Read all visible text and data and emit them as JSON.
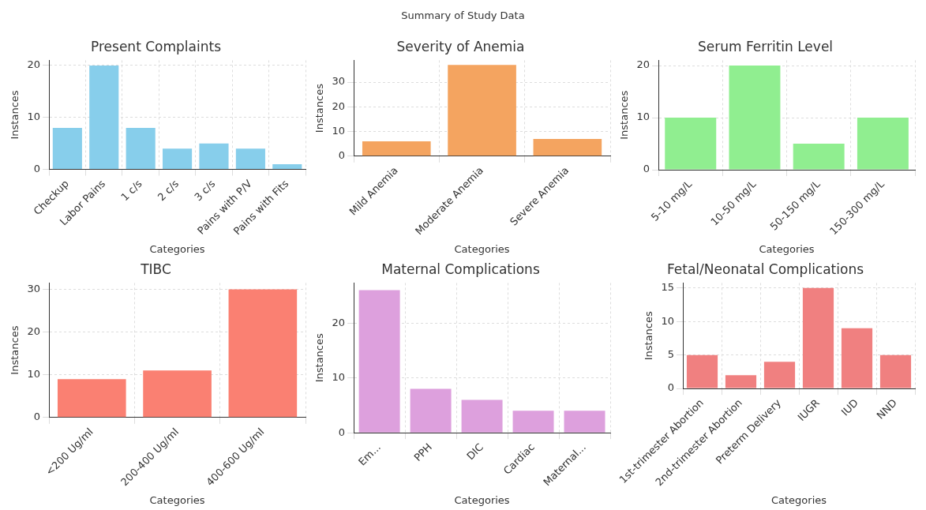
{
  "chart_data": [
    {
      "type": "other",
      "title": "Summary of Study Data"
    },
    {
      "type": "bar",
      "title": "Present Complaints",
      "xlabel": "Categories",
      "ylabel": "Instances",
      "categories": [
        "Checkup",
        "Labor Pains",
        "1 c/s",
        "2 c/s",
        "3 c/s",
        "Pains with P/V",
        "Pains with Fits"
      ],
      "values": [
        8,
        20,
        8,
        4,
        5,
        4,
        1
      ],
      "color": "#87ceeb",
      "ylim": [
        0,
        21
      ],
      "yticks": [
        0,
        10,
        20
      ],
      "grid": true
    },
    {
      "type": "bar",
      "title": "Severity of Anemia",
      "xlabel": "Categories",
      "ylabel": "Instances",
      "categories": [
        "Mild Anemia",
        "Moderate Anemia",
        "Severe Anemia"
      ],
      "values": [
        6,
        37,
        7
      ],
      "color": "#f4a460",
      "ylim": [
        0,
        38.85
      ],
      "yticks": [
        0,
        10,
        20,
        30
      ],
      "grid": true
    },
    {
      "type": "bar",
      "title": "Serum Ferritin Level",
      "xlabel": "Categories",
      "ylabel": "Instances",
      "categories": [
        "5-10 mg/L",
        "10-50 mg/L",
        "50-150 mg/L",
        "150-300 mg/L"
      ],
      "values": [
        10,
        20,
        5,
        10
      ],
      "color": "#90ee90",
      "ylim": [
        0,
        21
      ],
      "yticks": [
        0,
        10,
        20
      ],
      "grid": true
    },
    {
      "type": "bar",
      "title": "TIBC",
      "xlabel": "Categories",
      "ylabel": "Instances",
      "categories": [
        "<200 Ug/ml",
        "200-400 Ug/ml",
        "400-600 Ug/ml"
      ],
      "values": [
        9,
        11,
        30
      ],
      "color": "#fa8072",
      "ylim": [
        0,
        31.5
      ],
      "yticks": [
        0,
        10,
        20,
        30
      ],
      "grid": true
    },
    {
      "type": "bar",
      "title": "Maternal Complications",
      "xlabel": "Categories",
      "ylabel": "Instances",
      "categories": [
        "Em...",
        "PPH",
        "DIC",
        "Cardiac",
        "Maternal..."
      ],
      "values": [
        26,
        8,
        6,
        4,
        4
      ],
      "color": "#dda0dd",
      "ylim": [
        0,
        27.3
      ],
      "yticks": [
        0,
        10,
        20
      ],
      "grid": true
    },
    {
      "type": "bar",
      "title": "Fetal/Neonatal Complications",
      "xlabel": "Categories",
      "ylabel": "Instances",
      "categories": [
        "1st-trimester Abortion",
        "2nd-trimester Abortion",
        "Preterm Delivery",
        "IUGR",
        "IUD",
        "NND"
      ],
      "values": [
        5,
        2,
        4,
        15,
        9,
        5
      ],
      "color": "#f08080",
      "ylim": [
        0,
        15.75
      ],
      "yticks": [
        0,
        5,
        10,
        15
      ],
      "grid": true
    }
  ]
}
